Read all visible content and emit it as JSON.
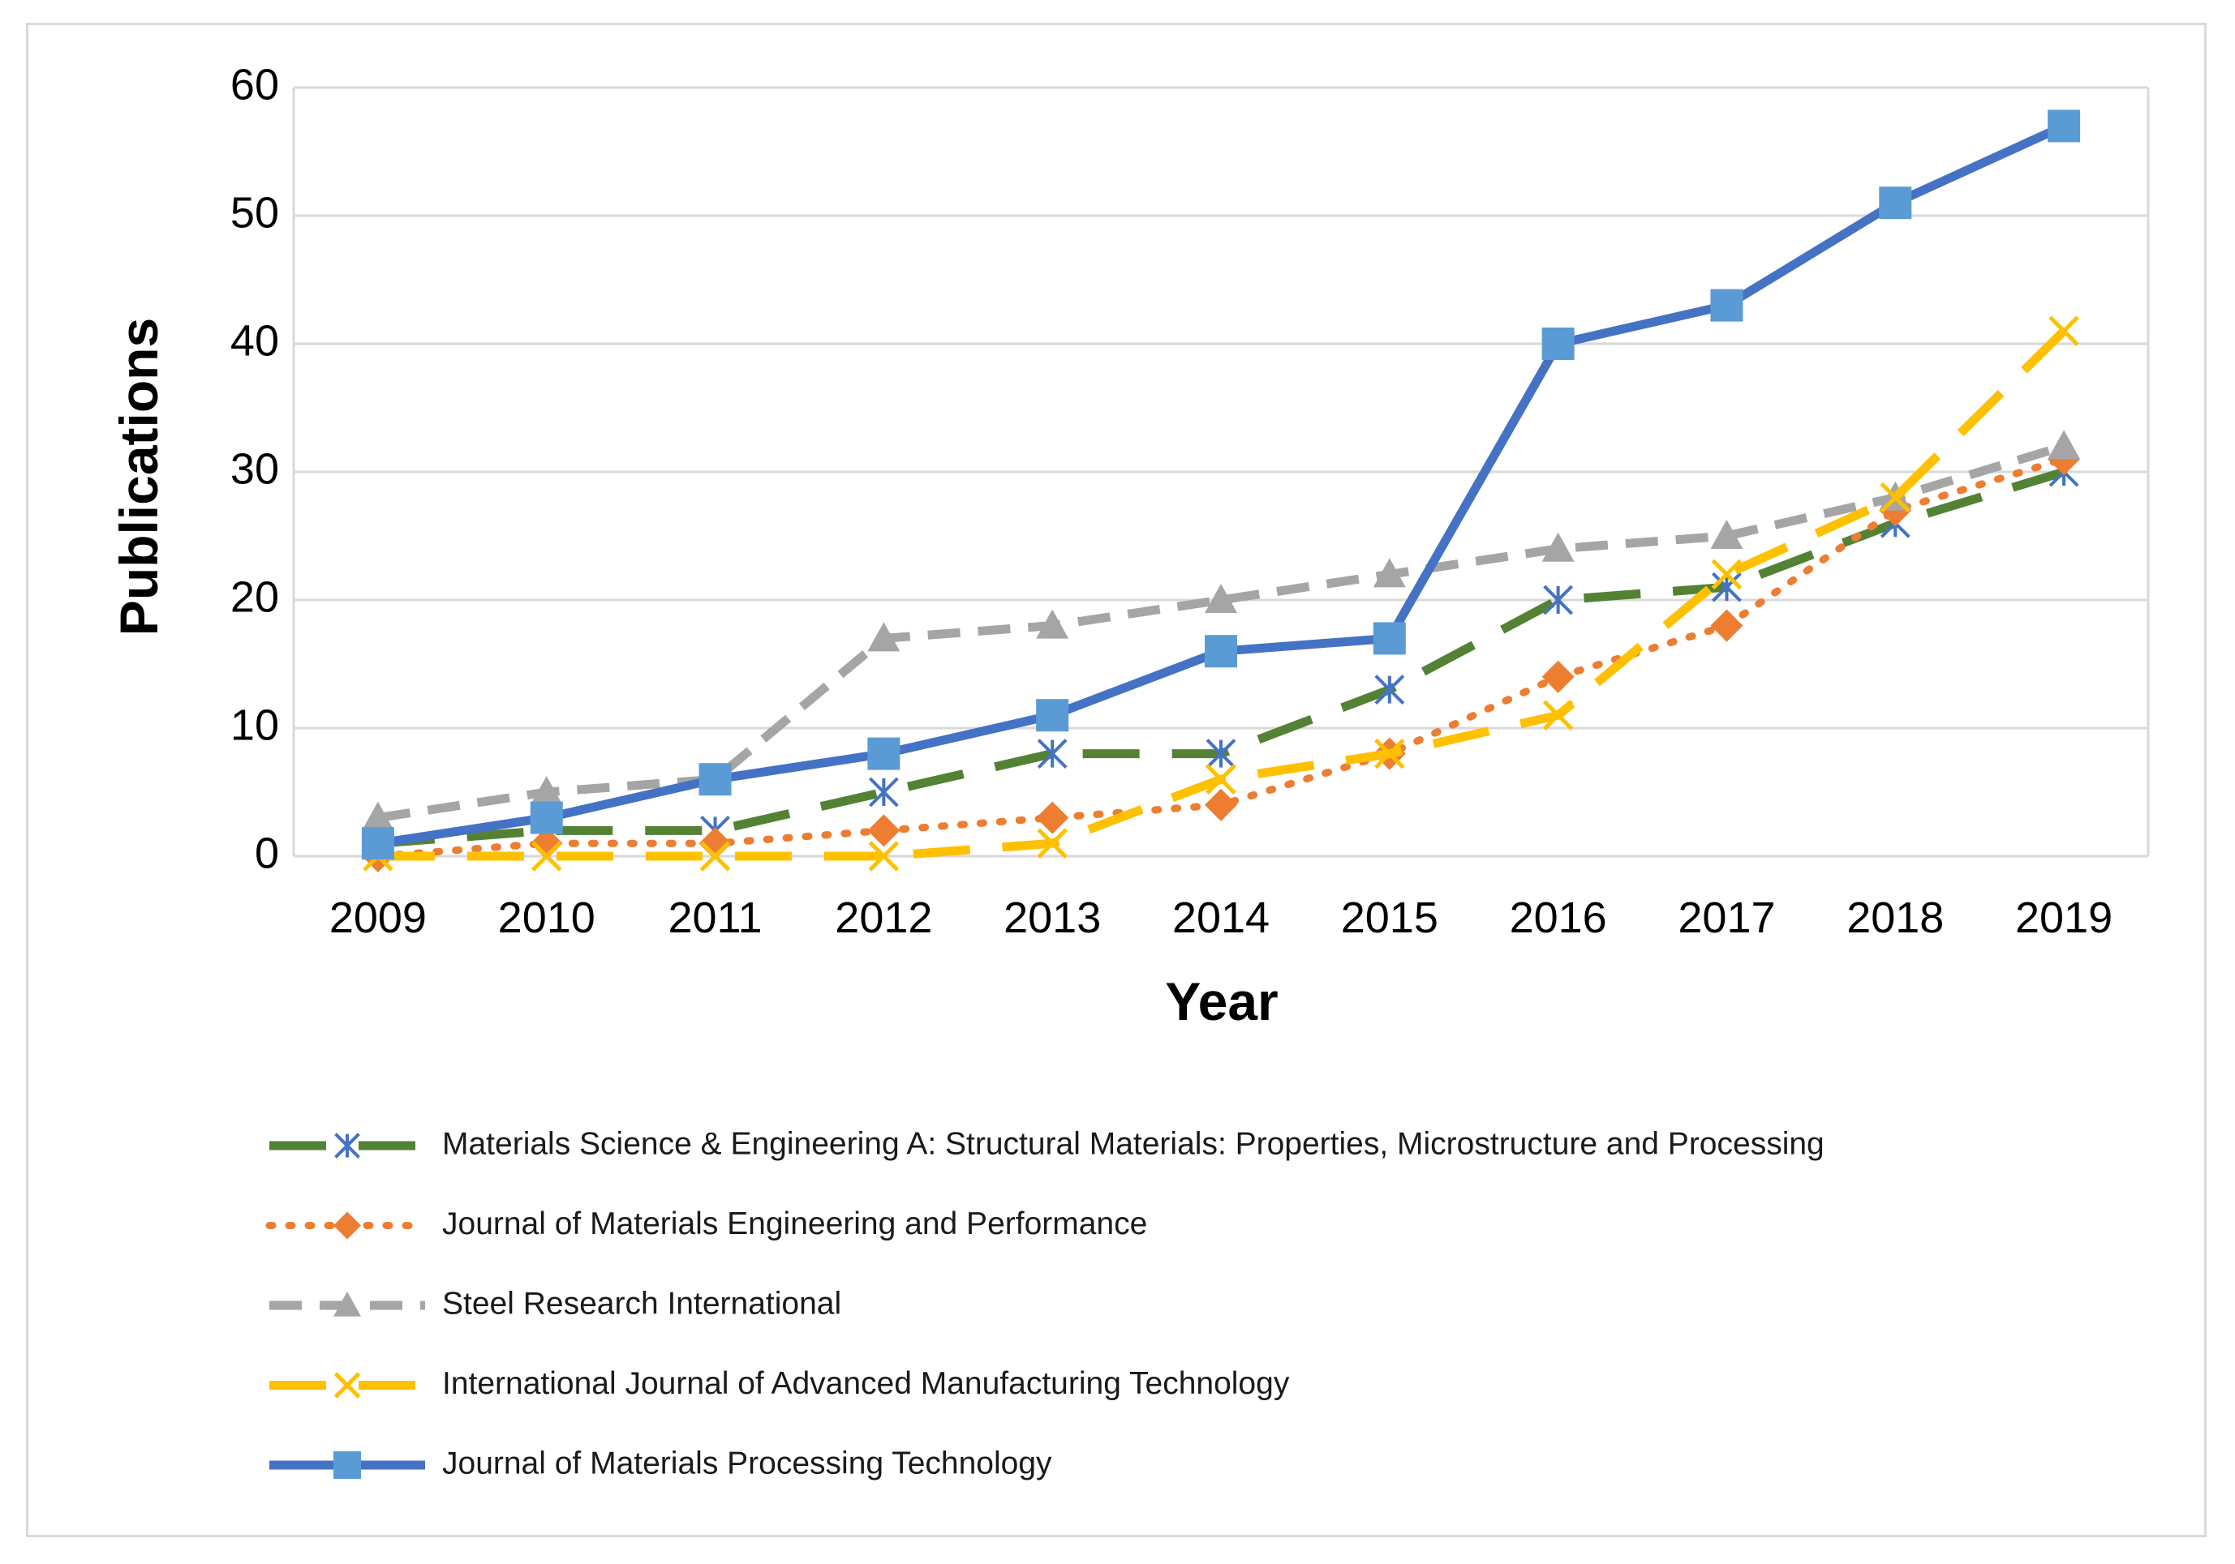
{
  "chart_data": {
    "type": "line",
    "title": "",
    "xlabel": "Year",
    "ylabel": "Publications",
    "ylim": [
      0,
      60
    ],
    "yticks": [
      "0",
      "10",
      "20",
      "30",
      "40",
      "50",
      "60"
    ],
    "categories": [
      "2009",
      "2010",
      "2011",
      "2012",
      "2013",
      "2014",
      "2015",
      "2016",
      "2017",
      "2018",
      "2019"
    ],
    "grid": true,
    "legend_position": "bottom",
    "series": [
      {
        "name": "Materials Science & Engineering A: Structural Materials: Properties, Microstructure and Processing",
        "values": [
          1,
          2,
          2,
          5,
          8,
          8,
          13,
          20,
          21,
          26,
          30
        ],
        "color": "#548235",
        "marker_color": "#4472c4",
        "marker": "asterisk",
        "dash": "long-dash"
      },
      {
        "name": "Journal of Materials Engineering and Performance",
        "values": [
          0,
          1,
          1,
          2,
          3,
          4,
          8,
          14,
          18,
          27,
          31
        ],
        "color": "#ed7d31",
        "marker": "diamond",
        "dash": "dotted"
      },
      {
        "name": "Steel Research International",
        "values": [
          3,
          5,
          6,
          17,
          18,
          20,
          22,
          24,
          25,
          28,
          32
        ],
        "color": "#a5a5a5",
        "marker": "triangle",
        "dash": "dashed"
      },
      {
        "name": "International Journal of Advanced Manufacturing Technology",
        "values": [
          0,
          0,
          0,
          0,
          1,
          6,
          8,
          11,
          22,
          28,
          41
        ],
        "color": "#ffc000",
        "marker": "x",
        "dash": "long-dash"
      },
      {
        "name": "Journal of Materials Processing Technology",
        "values": [
          1,
          3,
          6,
          8,
          11,
          16,
          17,
          40,
          43,
          51,
          57
        ],
        "color": "#4472c4",
        "marker_color": "#5b9bd5",
        "marker": "square",
        "dash": "solid"
      }
    ]
  }
}
